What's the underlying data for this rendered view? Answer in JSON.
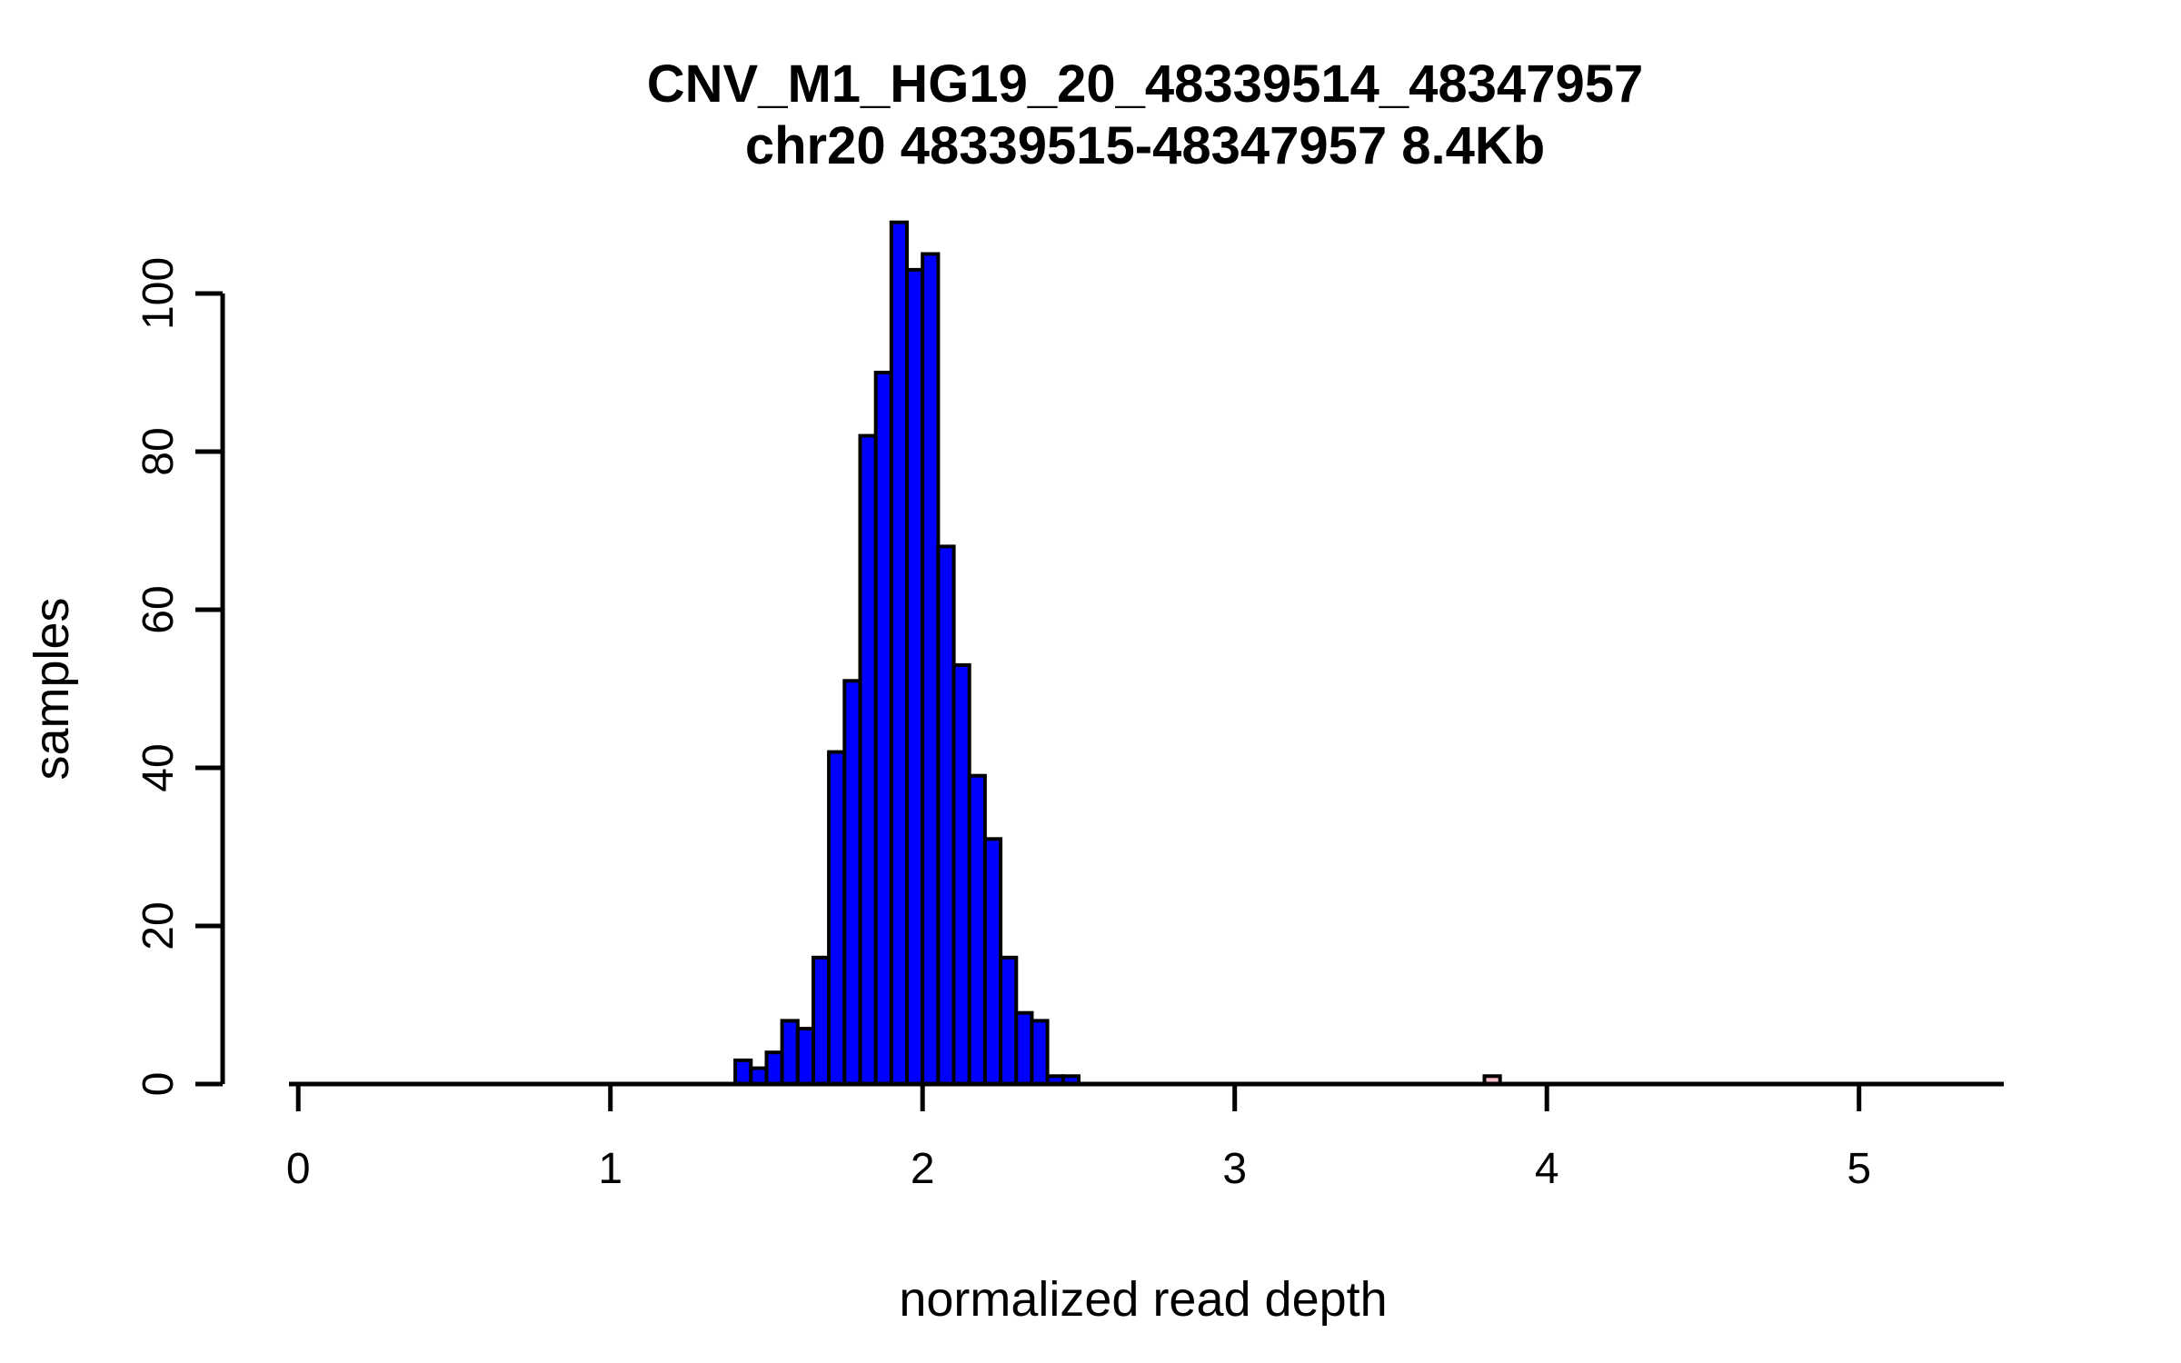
{
  "chart_data": {
    "type": "bar",
    "chart_kind": "histogram",
    "title": "CNV_M1_HG19_20_48339514_48347957",
    "subtitle": "chr20 48339515-48347957 8.4Kb",
    "xlabel": "normalized read depth",
    "ylabel": "samples",
    "x_ticks": [
      0,
      1,
      2,
      3,
      4,
      5
    ],
    "y_ticks": [
      0,
      20,
      40,
      60,
      80,
      100
    ],
    "xlim": [
      -0.03,
      5.46
    ],
    "ylim": [
      0,
      109
    ],
    "grid": false,
    "legend": "none",
    "bin_start": 1.4,
    "bin_width": 0.05,
    "counts": [
      3,
      2,
      4,
      8,
      7,
      16,
      42,
      51,
      82,
      90,
      109,
      103,
      105,
      68,
      53,
      39,
      31,
      16,
      9,
      8,
      1,
      1
    ],
    "outlier": {
      "x_start": 3.8,
      "bin_width": 0.05,
      "count": 1,
      "fill": "#FFC0CB"
    },
    "bar_fill": "#0000FF",
    "bar_stroke": "#000000",
    "axis_color": "#000000",
    "background": "#FFFFFF"
  }
}
